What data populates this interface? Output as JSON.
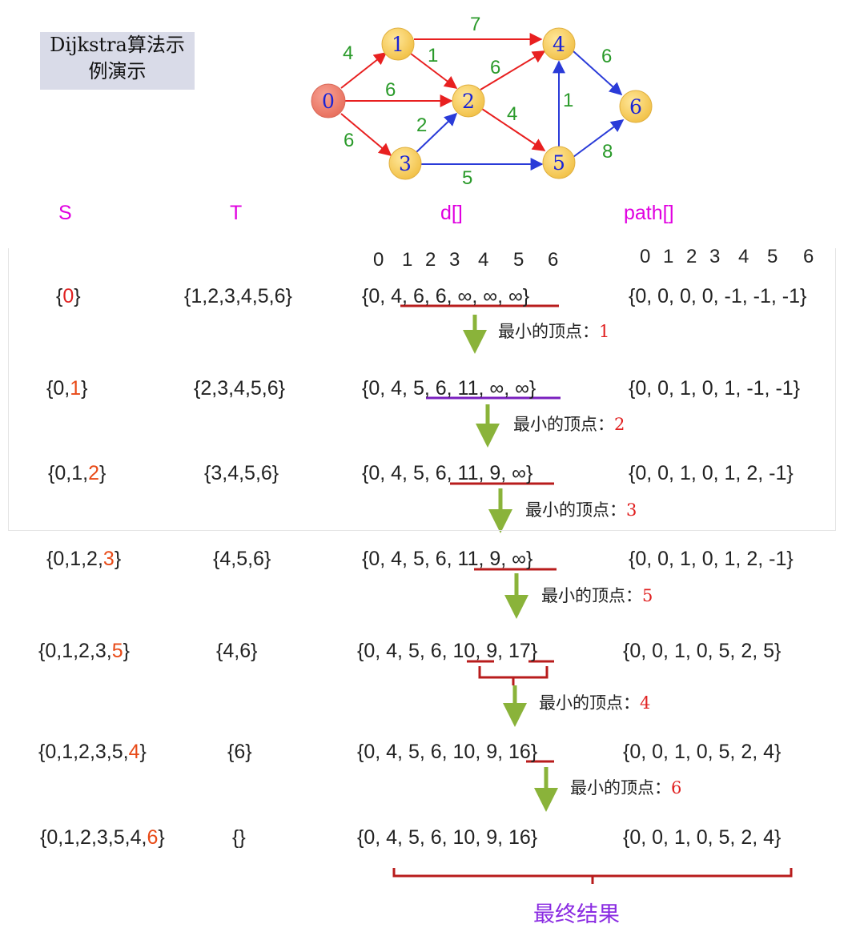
{
  "title_line1": "Dijkstra算法示",
  "title_line2": "例演示",
  "graph": {
    "nodes": [
      "0",
      "1",
      "2",
      "3",
      "4",
      "5",
      "6"
    ],
    "edges": [
      {
        "from": "0",
        "to": "1",
        "weight": "4",
        "color": "red"
      },
      {
        "from": "0",
        "to": "2",
        "weight": "6",
        "color": "red"
      },
      {
        "from": "0",
        "to": "3",
        "weight": "6",
        "color": "red"
      },
      {
        "from": "1",
        "to": "4",
        "weight": "7",
        "color": "red"
      },
      {
        "from": "1",
        "to": "2",
        "weight": "1",
        "color": "red"
      },
      {
        "from": "2",
        "to": "4",
        "weight": "6",
        "color": "red"
      },
      {
        "from": "2",
        "to": "5",
        "weight": "4",
        "color": "red"
      },
      {
        "from": "3",
        "to": "2",
        "weight": "2",
        "color": "blue"
      },
      {
        "from": "3",
        "to": "5",
        "weight": "5",
        "color": "blue"
      },
      {
        "from": "5",
        "to": "4",
        "weight": "1",
        "color": "blue"
      },
      {
        "from": "4",
        "to": "6",
        "weight": "6",
        "color": "blue"
      },
      {
        "from": "5",
        "to": "6",
        "weight": "8",
        "color": "blue"
      }
    ]
  },
  "headers": {
    "s": "S",
    "t": "T",
    "d": "d[]",
    "path": "path[]"
  },
  "index_row_d": [
    "0",
    "1",
    "2",
    "3",
    "4",
    "5",
    "6"
  ],
  "index_row_path": [
    "0",
    "1",
    "2",
    "3",
    "4",
    "5",
    "6"
  ],
  "steps": [
    {
      "s": [
        "{",
        "0",
        "}"
      ],
      "t": "{1,2,3,4,5,6}",
      "d": "{0, 4, 6, 6, ∞, ∞, ∞}",
      "path": "{0, 0, 0, 0, -1, -1, -1}",
      "min_label": "最小的顶点：",
      "min_value": "1"
    },
    {
      "s": [
        "{0,",
        "1",
        "}"
      ],
      "t": "{2,3,4,5,6}",
      "d": "{0, 4, 5, 6, 11, ∞, ∞}",
      "path": "{0, 0, 1, 0, 1, -1, -1}",
      "min_label": "最小的顶点：",
      "min_value": "2"
    },
    {
      "s": [
        "{0,1,",
        "2",
        "}"
      ],
      "t": "{3,4,5,6}",
      "d": "{0, 4, 5, 6, 11, 9, ∞}",
      "path": "{0, 0, 1, 0, 1, 2, -1}",
      "min_label": "最小的顶点：",
      "min_value": "3"
    },
    {
      "s": [
        "{0,1,2,",
        "3",
        "}"
      ],
      "t": "{4,5,6}",
      "d": "{0, 4, 5, 6, 11, 9, ∞}",
      "path": "{0, 0, 1, 0, 1, 2, -1}",
      "min_label": "最小的顶点：",
      "min_value": "5"
    },
    {
      "s": [
        "{0,1,2,3,",
        "5",
        "}"
      ],
      "t": "{4,6}",
      "d": "{0, 4, 5, 6, 10, 9, 17}",
      "path": "{0, 0, 1, 0, 5, 2, 5}",
      "min_label": "最小的顶点：",
      "min_value": "4"
    },
    {
      "s": [
        "{0,1,2,3,5,",
        "4",
        "}"
      ],
      "t": "{6}",
      "d": "{0, 4, 5, 6, 10, 9, 16}",
      "path": "{0, 0, 1, 0, 5, 2, 4}",
      "min_label": "最小的顶点：",
      "min_value": "6"
    },
    {
      "s": [
        "{0,1,2,3,5,4,",
        "6",
        "}"
      ],
      "t": "{}",
      "d": "{0, 4, 5, 6, 10, 9, 16}",
      "path": "{0, 0, 1, 0, 5, 2, 4}"
    }
  ],
  "final_label": "最终结果"
}
